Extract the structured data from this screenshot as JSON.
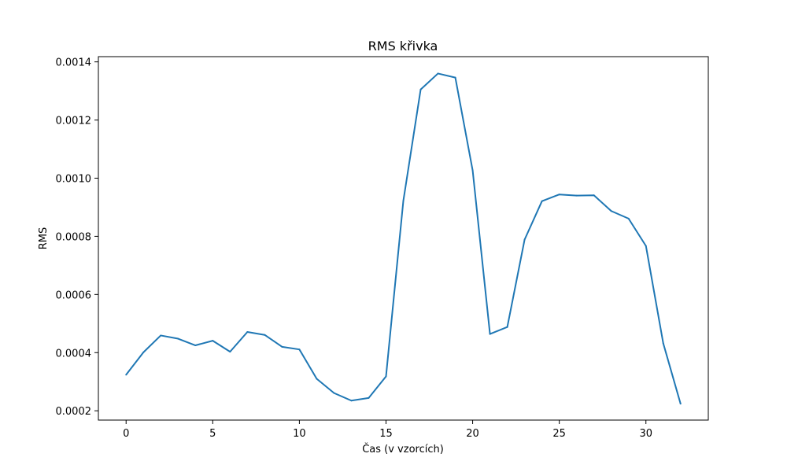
{
  "chart_data": {
    "type": "line",
    "title": "RMS křivka",
    "xlabel": "Čas (v vzorcích)",
    "ylabel": "RMS",
    "xlim": [
      -1.6,
      33.6
    ],
    "ylim": [
      0.000168,
      0.001418
    ],
    "x_ticks": [
      0,
      5,
      10,
      15,
      20,
      25,
      30
    ],
    "x_tick_labels": [
      "0",
      "5",
      "10",
      "15",
      "20",
      "25",
      "30"
    ],
    "y_ticks": [
      0.0002,
      0.0004,
      0.0006,
      0.0008,
      0.001,
      0.0012,
      0.0014
    ],
    "y_tick_labels": [
      "0.0002",
      "0.0004",
      "0.0006",
      "0.0008",
      "0.0010",
      "0.0012",
      "0.0014"
    ],
    "grid": false,
    "series": [
      {
        "color": "#1f77b4",
        "x": [
          0,
          1,
          2,
          3,
          4,
          5,
          6,
          7,
          8,
          9,
          10,
          11,
          12,
          13,
          14,
          15,
          16,
          17,
          18,
          19,
          20,
          21,
          22,
          23,
          24,
          25,
          26,
          27,
          28,
          29,
          30,
          31,
          32
        ],
        "y": [
          0.000324,
          0.000401,
          0.000459,
          0.000448,
          0.000425,
          0.000441,
          0.000403,
          0.000471,
          0.000461,
          0.00042,
          0.000411,
          0.00031,
          0.000261,
          0.000235,
          0.000244,
          0.000318,
          0.000922,
          0.001305,
          0.00136,
          0.001346,
          0.001027,
          0.000464,
          0.000488,
          0.000789,
          0.000921,
          0.000944,
          0.00094,
          0.000941,
          0.000887,
          0.000861,
          0.000767,
          0.000432,
          0.000224
        ]
      }
    ]
  }
}
